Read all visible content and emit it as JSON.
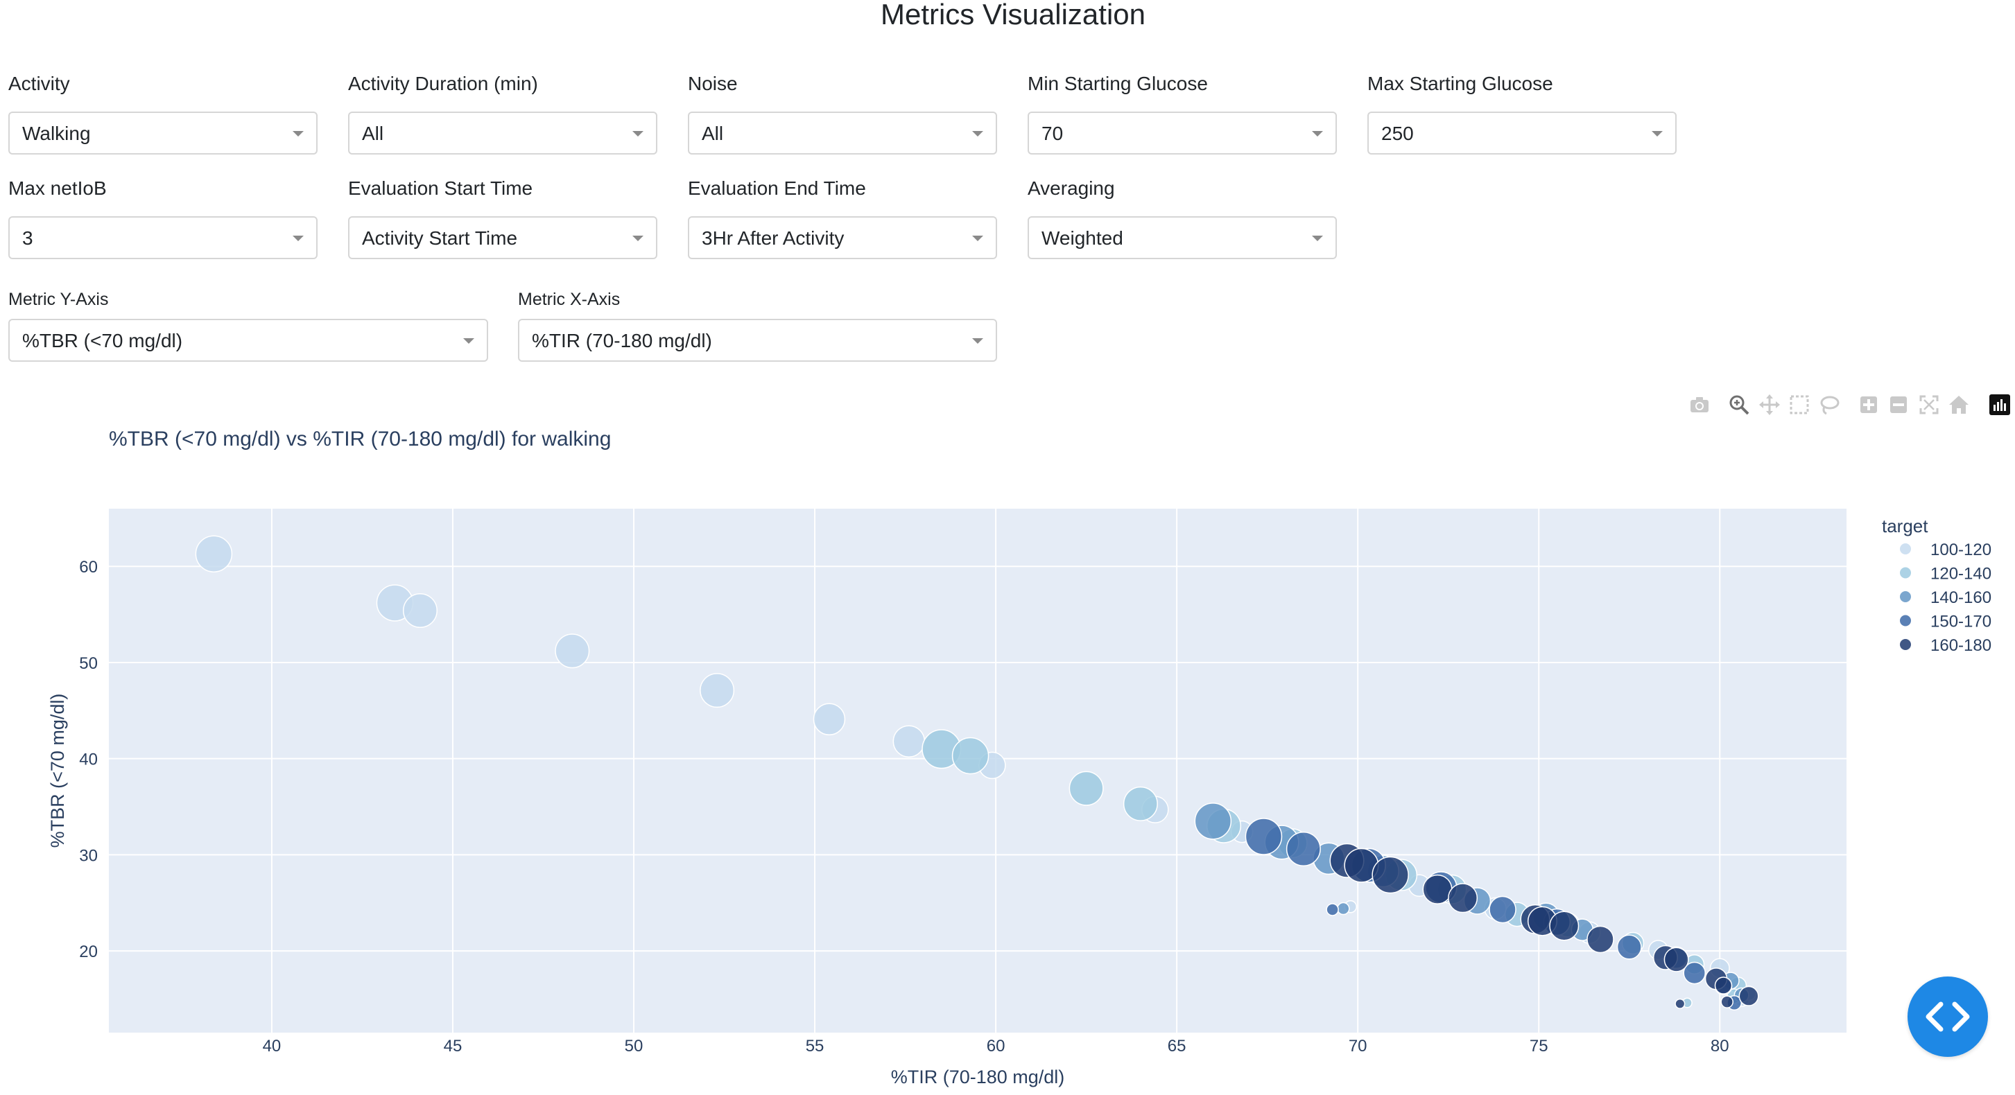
{
  "page": {
    "title": "Metrics Visualization"
  },
  "filters": {
    "activity": {
      "label": "Activity",
      "value": "Walking"
    },
    "duration": {
      "label": "Activity Duration (min)",
      "value": "All"
    },
    "noise": {
      "label": "Noise",
      "value": "All"
    },
    "min_glucose": {
      "label": "Min Starting Glucose",
      "value": "70"
    },
    "max_glucose": {
      "label": "Max Starting Glucose",
      "value": "250"
    },
    "max_netiob": {
      "label": "Max netIoB",
      "value": "3"
    },
    "eval_start": {
      "label": "Evaluation Start Time",
      "value": "Activity Start Time"
    },
    "eval_end": {
      "label": "Evaluation End Time",
      "value": "3Hr After Activity"
    },
    "averaging": {
      "label": "Averaging",
      "value": "Weighted"
    },
    "metric_y": {
      "label": "Metric Y-Axis",
      "value": "%TBR (<70 mg/dl)"
    },
    "metric_x": {
      "label": "Metric X-Axis",
      "value": "%TIR (70-180 mg/dl)"
    }
  },
  "toolbar": {
    "icons": [
      "camera-icon",
      "zoom-icon",
      "pan-icon",
      "box-select-icon",
      "lasso-select-icon",
      "zoom-in-icon",
      "zoom-out-icon",
      "autoscale-icon",
      "reset-axes-icon",
      "plotly-logo-icon"
    ]
  },
  "chart_data": {
    "type": "scatter",
    "title": "%TBR (<70 mg/dl) vs %TIR (70-180 mg/dl) for walking",
    "xlabel": "%TIR (70-180 mg/dl)",
    "ylabel": "%TBR (<70 mg/dl)",
    "xlim": [
      35.5,
      83.5
    ],
    "ylim": [
      11.5,
      66.0
    ],
    "xticks": [
      40,
      45,
      50,
      55,
      60,
      65,
      70,
      75,
      80
    ],
    "yticks": [
      20,
      30,
      40,
      50,
      60
    ],
    "grid": true,
    "legend_title": "target",
    "legend_position": "top-right",
    "colors": {
      "100-120": "#c6dbef",
      "120-140": "#9ecae1",
      "140-160": "#6497c6",
      "150-170": "#3d6aa8",
      "160-180": "#1e3a70"
    },
    "series": [
      {
        "name": "100-120",
        "points": [
          {
            "x": 38.4,
            "y": 61.3,
            "s": 12
          },
          {
            "x": 43.4,
            "y": 56.2,
            "s": 12
          },
          {
            "x": 44.1,
            "y": 55.4,
            "s": 11
          },
          {
            "x": 48.3,
            "y": 51.2,
            "s": 11
          },
          {
            "x": 52.3,
            "y": 47.1,
            "s": 11
          },
          {
            "x": 55.4,
            "y": 44.1,
            "s": 10
          },
          {
            "x": 57.6,
            "y": 41.8,
            "s": 10
          },
          {
            "x": 59.9,
            "y": 39.3,
            "s": 8
          },
          {
            "x": 64.4,
            "y": 34.7,
            "s": 8
          },
          {
            "x": 66.8,
            "y": 32.4,
            "s": 6
          },
          {
            "x": 69.8,
            "y": 24.6,
            "s": 2
          },
          {
            "x": 71.7,
            "y": 26.8,
            "s": 6
          },
          {
            "x": 73.8,
            "y": 24.4,
            "s": 6
          },
          {
            "x": 76.4,
            "y": 21.9,
            "s": 6
          },
          {
            "x": 78.3,
            "y": 20.1,
            "s": 5
          },
          {
            "x": 80.0,
            "y": 18.2,
            "s": 5
          },
          {
            "x": 80.6,
            "y": 15.1,
            "s": 4
          },
          {
            "x": 80.8,
            "y": 15.6,
            "s": 3
          }
        ]
      },
      {
        "name": "120-140",
        "points": [
          {
            "x": 58.5,
            "y": 41.0,
            "s": 13
          },
          {
            "x": 59.3,
            "y": 40.3,
            "s": 12
          },
          {
            "x": 62.5,
            "y": 36.9,
            "s": 11
          },
          {
            "x": 64.0,
            "y": 35.3,
            "s": 11
          },
          {
            "x": 66.3,
            "y": 33.0,
            "s": 11
          },
          {
            "x": 68.2,
            "y": 31.2,
            "s": 9
          },
          {
            "x": 71.2,
            "y": 27.9,
            "s": 10
          },
          {
            "x": 72.6,
            "y": 26.4,
            "s": 9
          },
          {
            "x": 74.4,
            "y": 23.8,
            "s": 7
          },
          {
            "x": 75.8,
            "y": 22.7,
            "s": 7
          },
          {
            "x": 77.6,
            "y": 20.8,
            "s": 6
          },
          {
            "x": 79.3,
            "y": 18.6,
            "s": 5
          },
          {
            "x": 80.5,
            "y": 16.4,
            "s": 4
          },
          {
            "x": 80.4,
            "y": 15.3,
            "s": 3
          },
          {
            "x": 79.1,
            "y": 14.6,
            "s": 1
          }
        ]
      },
      {
        "name": "140-160",
        "points": [
          {
            "x": 66.0,
            "y": 33.5,
            "s": 12
          },
          {
            "x": 67.9,
            "y": 31.3,
            "s": 11
          },
          {
            "x": 69.2,
            "y": 29.6,
            "s": 10
          },
          {
            "x": 70.7,
            "y": 28.3,
            "s": 10
          },
          {
            "x": 73.3,
            "y": 25.2,
            "s": 8
          },
          {
            "x": 75.2,
            "y": 23.6,
            "s": 8
          },
          {
            "x": 76.2,
            "y": 22.2,
            "s": 6
          },
          {
            "x": 78.8,
            "y": 19.3,
            "s": 6
          },
          {
            "x": 80.3,
            "y": 16.9,
            "s": 4
          },
          {
            "x": 80.6,
            "y": 15.4,
            "s": 3
          },
          {
            "x": 69.6,
            "y": 24.4,
            "s": 2
          }
        ]
      },
      {
        "name": "150-170",
        "points": [
          {
            "x": 67.4,
            "y": 31.9,
            "s": 12
          },
          {
            "x": 68.5,
            "y": 30.6,
            "s": 11
          },
          {
            "x": 70.3,
            "y": 28.9,
            "s": 11
          },
          {
            "x": 72.3,
            "y": 26.6,
            "s": 10
          },
          {
            "x": 74.0,
            "y": 24.3,
            "s": 8
          },
          {
            "x": 75.5,
            "y": 23.0,
            "s": 8
          },
          {
            "x": 77.5,
            "y": 20.4,
            "s": 7
          },
          {
            "x": 79.3,
            "y": 17.7,
            "s": 6
          },
          {
            "x": 80.1,
            "y": 16.3,
            "s": 4
          },
          {
            "x": 80.4,
            "y": 14.6,
            "s": 3
          },
          {
            "x": 69.3,
            "y": 24.3,
            "s": 2
          }
        ]
      },
      {
        "name": "160-180",
        "points": [
          {
            "x": 69.7,
            "y": 29.4,
            "s": 11
          },
          {
            "x": 70.1,
            "y": 28.9,
            "s": 11
          },
          {
            "x": 70.9,
            "y": 27.9,
            "s": 12
          },
          {
            "x": 72.2,
            "y": 26.4,
            "s": 9
          },
          {
            "x": 72.9,
            "y": 25.5,
            "s": 9
          },
          {
            "x": 74.9,
            "y": 23.3,
            "s": 9
          },
          {
            "x": 75.1,
            "y": 23.1,
            "s": 9
          },
          {
            "x": 75.7,
            "y": 22.6,
            "s": 9
          },
          {
            "x": 76.7,
            "y": 21.2,
            "s": 8
          },
          {
            "x": 78.5,
            "y": 19.3,
            "s": 7
          },
          {
            "x": 78.8,
            "y": 19.1,
            "s": 7
          },
          {
            "x": 79.9,
            "y": 17.1,
            "s": 6
          },
          {
            "x": 80.1,
            "y": 16.4,
            "s": 4
          },
          {
            "x": 80.8,
            "y": 15.3,
            "s": 5
          },
          {
            "x": 80.2,
            "y": 14.7,
            "s": 2
          },
          {
            "x": 78.9,
            "y": 14.5,
            "s": 1
          }
        ]
      }
    ]
  }
}
